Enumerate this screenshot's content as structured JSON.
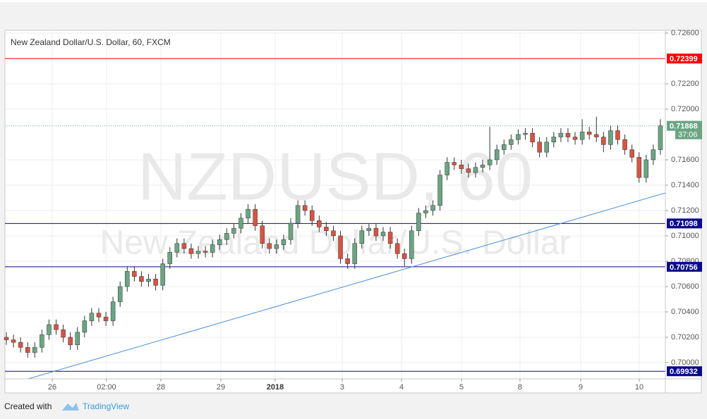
{
  "chart_data": {
    "type": "candlestick",
    "title": "New Zealand Dollar/U.S. Dollar, 60, FXCM",
    "watermark": {
      "symbol": "NZDUSD, 60",
      "name": "New Zealand Dollar/U.S. Dollar"
    },
    "up_color": "#6ba583",
    "down_color": "#d75442",
    "wick_color": "#333333",
    "grid": true,
    "xlim": [
      -0.2,
      92.7
    ],
    "xticks": [
      {
        "value": 6.45,
        "label": "26"
      },
      {
        "value": 14.09,
        "label": "02:00"
      },
      {
        "value": 21.73,
        "label": "28"
      },
      {
        "value": 30.17,
        "label": "29"
      },
      {
        "value": 37.81,
        "label": "2018"
      },
      {
        "value": 47.24,
        "label": "3"
      },
      {
        "value": 55.58,
        "label": "4"
      },
      {
        "value": 64.02,
        "label": "5"
      },
      {
        "value": 72.25,
        "label": "8"
      },
      {
        "value": 80.79,
        "label": "9"
      },
      {
        "value": 89.03,
        "label": "10"
      }
    ],
    "ylim": [
      0.69872,
      0.72622
    ],
    "yticks": [
      {
        "value": 0.7,
        "label": "0.70000"
      },
      {
        "value": 0.702,
        "label": "0.70200"
      },
      {
        "value": 0.704,
        "label": "0.70400"
      },
      {
        "value": 0.706,
        "label": "0.70600"
      },
      {
        "value": 0.708,
        "label": "0.70800"
      },
      {
        "value": 0.71,
        "label": "0.71000"
      },
      {
        "value": 0.712,
        "label": "0.71200"
      },
      {
        "value": 0.714,
        "label": "0.71400"
      },
      {
        "value": 0.716,
        "label": "0.71600"
      },
      {
        "value": 0.72,
        "label": "0.72000"
      },
      {
        "value": 0.722,
        "label": "0.72200"
      },
      {
        "value": 0.726,
        "label": "0.72600"
      }
    ],
    "levels": [
      {
        "value": 0.72399,
        "color": "#ff0000"
      },
      {
        "value": 0.71098,
        "color": "#0a0a8c"
      },
      {
        "value": 0.70756,
        "color": "#0a0a8c"
      },
      {
        "value": 0.69932,
        "color": "#0a0a8c"
      }
    ],
    "last_price": 0.71868,
    "last_color": "#6ba583",
    "countdown": "37:06",
    "open": [
      0.702,
      0.7018,
      0.7016,
      0.7012,
      0.7008,
      0.7012,
      0.7022,
      0.703,
      0.7026,
      0.702,
      0.7014,
      0.7024,
      0.7033,
      0.7039,
      0.7036,
      0.7033,
      0.7048,
      0.706,
      0.7072,
      0.7068,
      0.7064,
      0.7066,
      0.7061,
      0.7078,
      0.7087,
      0.7094,
      0.709,
      0.7086,
      0.7088,
      0.7087,
      0.7093,
      0.7097,
      0.7102,
      0.7106,
      0.7114,
      0.7121,
      0.7108,
      0.7094,
      0.709,
      0.7093,
      0.7097,
      0.711,
      0.7124,
      0.712,
      0.7112,
      0.7107,
      0.7104,
      0.71,
      0.7082,
      0.7078,
      0.7094,
      0.7104,
      0.7106,
      0.71,
      0.7103,
      0.7094,
      0.7086,
      0.7082,
      0.7104,
      0.7118,
      0.712,
      0.7124,
      0.7148,
      0.7158,
      0.7156,
      0.7153,
      0.715,
      0.7154,
      0.7156,
      0.716,
      0.7168,
      0.7172,
      0.7176,
      0.718,
      0.7181,
      0.7174,
      0.7166,
      0.7174,
      0.7178,
      0.7181,
      0.7178,
      0.7176,
      0.7182,
      0.718,
      0.7178,
      0.7172,
      0.7183,
      0.7176,
      0.7168,
      0.7162,
      0.7146,
      0.716,
      0.7168
    ],
    "high": [
      0.7024,
      0.7022,
      0.702,
      0.7016,
      0.7016,
      0.7026,
      0.7034,
      0.7034,
      0.703,
      0.7024,
      0.7028,
      0.7037,
      0.7043,
      0.7043,
      0.704,
      0.7052,
      0.7064,
      0.7076,
      0.7076,
      0.7072,
      0.707,
      0.707,
      0.7082,
      0.7091,
      0.7098,
      0.7098,
      0.7094,
      0.7092,
      0.7092,
      0.7097,
      0.7101,
      0.7106,
      0.711,
      0.7118,
      0.7125,
      0.7125,
      0.7112,
      0.7098,
      0.7097,
      0.7101,
      0.7114,
      0.7128,
      0.7128,
      0.7124,
      0.7116,
      0.7111,
      0.7108,
      0.7104,
      0.7086,
      0.7098,
      0.7108,
      0.711,
      0.711,
      0.7107,
      0.7107,
      0.7098,
      0.709,
      0.7108,
      0.7122,
      0.7124,
      0.7128,
      0.7152,
      0.7162,
      0.7162,
      0.716,
      0.7157,
      0.7158,
      0.716,
      0.7186,
      0.7172,
      0.7176,
      0.718,
      0.7184,
      0.7185,
      0.7185,
      0.7178,
      0.7178,
      0.7182,
      0.7185,
      0.7185,
      0.7182,
      0.7192,
      0.7186,
      0.7194,
      0.7182,
      0.7187,
      0.7187,
      0.718,
      0.7172,
      0.7166,
      0.7164,
      0.7172,
      0.7192
    ],
    "low": [
      0.7014,
      0.7012,
      0.7008,
      0.7004,
      0.7004,
      0.7008,
      0.7018,
      0.7022,
      0.7016,
      0.701,
      0.701,
      0.702,
      0.7029,
      0.7032,
      0.7029,
      0.7029,
      0.7044,
      0.7056,
      0.7064,
      0.706,
      0.706,
      0.7057,
      0.7057,
      0.7074,
      0.7083,
      0.7086,
      0.7082,
      0.7082,
      0.7083,
      0.7083,
      0.7089,
      0.7093,
      0.7098,
      0.7102,
      0.711,
      0.7104,
      0.709,
      0.7086,
      0.7086,
      0.7089,
      0.7093,
      0.7106,
      0.7116,
      0.7108,
      0.7103,
      0.71,
      0.7096,
      0.7078,
      0.7074,
      0.7074,
      0.709,
      0.71,
      0.7096,
      0.7096,
      0.709,
      0.7082,
      0.7076,
      0.7078,
      0.71,
      0.7114,
      0.7116,
      0.712,
      0.7144,
      0.7152,
      0.7149,
      0.7146,
      0.7146,
      0.715,
      0.7152,
      0.7156,
      0.7164,
      0.7168,
      0.7172,
      0.7176,
      0.717,
      0.7162,
      0.7162,
      0.717,
      0.7174,
      0.7174,
      0.7172,
      0.7172,
      0.7176,
      0.7174,
      0.7166,
      0.7168,
      0.7172,
      0.7164,
      0.7158,
      0.7142,
      0.7142,
      0.7156,
      0.7164
    ],
    "close": [
      0.7018,
      0.7016,
      0.7012,
      0.7008,
      0.7012,
      0.7022,
      0.703,
      0.7026,
      0.702,
      0.7014,
      0.7024,
      0.7033,
      0.7039,
      0.7036,
      0.7033,
      0.7048,
      0.706,
      0.7072,
      0.7068,
      0.7064,
      0.7066,
      0.7061,
      0.7078,
      0.7087,
      0.7094,
      0.709,
      0.7086,
      0.7088,
      0.7087,
      0.7093,
      0.7097,
      0.7102,
      0.7106,
      0.7114,
      0.7121,
      0.7108,
      0.7094,
      0.709,
      0.7093,
      0.7097,
      0.711,
      0.7124,
      0.712,
      0.7112,
      0.7107,
      0.7104,
      0.71,
      0.7082,
      0.7078,
      0.7094,
      0.7104,
      0.7106,
      0.71,
      0.7103,
      0.7094,
      0.7086,
      0.7082,
      0.7104,
      0.7118,
      0.712,
      0.7124,
      0.7148,
      0.7158,
      0.7156,
      0.7153,
      0.715,
      0.7154,
      0.7156,
      0.716,
      0.7168,
      0.7172,
      0.7176,
      0.718,
      0.7181,
      0.7174,
      0.7166,
      0.7174,
      0.7178,
      0.7181,
      0.7178,
      0.7176,
      0.7182,
      0.718,
      0.7178,
      0.7172,
      0.7183,
      0.7176,
      0.7168,
      0.7162,
      0.7146,
      0.716,
      0.7168,
      0.71868
    ]
  },
  "footer": {
    "created_with": "Created with",
    "brand": "TradingView"
  }
}
